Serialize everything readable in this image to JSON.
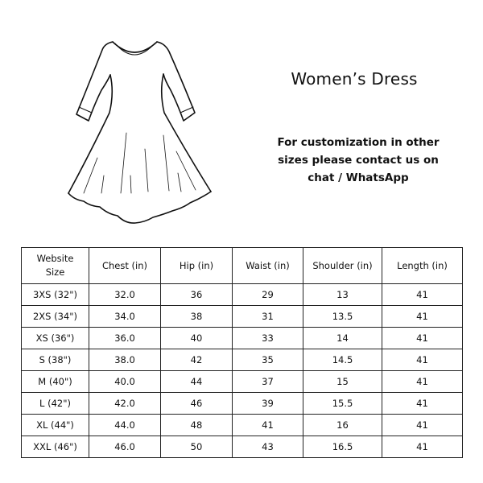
{
  "title": "Women’s Dress",
  "note": "For customization in other sizes please contact us on chat / WhatsApp",
  "table": {
    "headers": [
      "Website Size",
      "Chest (in)",
      "Hip (in)",
      "Waist (in)",
      "Shoulder (in)",
      "Length (in)"
    ],
    "rows": [
      [
        "3XS (32\")",
        "32.0",
        "36",
        "29",
        "13",
        "41"
      ],
      [
        "2XS (34\")",
        "34.0",
        "38",
        "31",
        "13.5",
        "41"
      ],
      [
        "XS (36\")",
        "36.0",
        "40",
        "33",
        "14",
        "41"
      ],
      [
        "S (38\")",
        "38.0",
        "42",
        "35",
        "14.5",
        "41"
      ],
      [
        "M (40\")",
        "40.0",
        "44",
        "37",
        "15",
        "41"
      ],
      [
        "L (42\")",
        "42.0",
        "46",
        "39",
        "15.5",
        "41"
      ],
      [
        "XL (44\")",
        "44.0",
        "48",
        "41",
        "16",
        "41"
      ],
      [
        "XXL (46\")",
        "46.0",
        "50",
        "43",
        "16.5",
        "41"
      ]
    ]
  }
}
